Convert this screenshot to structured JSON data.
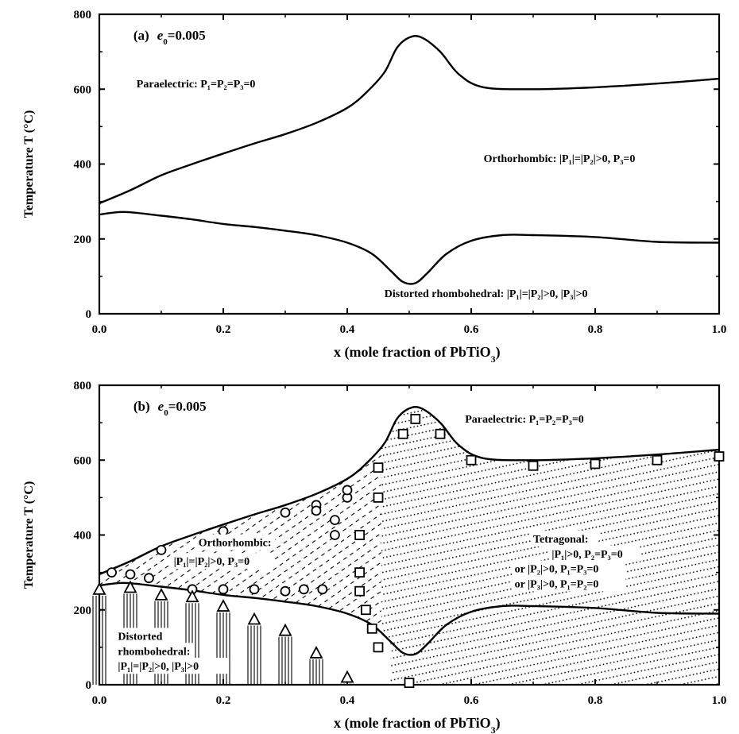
{
  "chart_data": [
    {
      "type": "line",
      "panel_label": "(a)",
      "parameter_label": "e",
      "parameter_subscript": "0",
      "parameter_value": "=0.005",
      "xlabel": "x (mole fraction of PbTiO",
      "xlabel_sub": "3",
      "xlabel_end": ")",
      "ylabel": "Temperature T (°C)",
      "xlim": [
        0.0,
        1.0
      ],
      "ylim": [
        0,
        800
      ],
      "xticks": [
        "0.0",
        "0.2",
        "0.4",
        "0.6",
        "0.8",
        "1.0"
      ],
      "yticks": [
        "0",
        "200",
        "400",
        "600",
        "800"
      ],
      "series": [
        {
          "x": [
            0.0,
            0.05,
            0.1,
            0.15,
            0.2,
            0.25,
            0.3,
            0.35,
            0.4,
            0.43,
            0.46,
            0.48,
            0.5,
            0.52,
            0.55,
            0.58,
            0.62,
            0.7,
            0.8,
            0.9,
            1.0
          ],
          "values": [
            295,
            330,
            370,
            400,
            428,
            455,
            480,
            510,
            550,
            590,
            645,
            710,
            738,
            738,
            700,
            640,
            605,
            600,
            605,
            615,
            628
          ]
        },
        {
          "x": [
            0.0,
            0.04,
            0.1,
            0.15,
            0.2,
            0.25,
            0.3,
            0.35,
            0.4,
            0.44,
            0.47,
            0.49,
            0.51,
            0.53,
            0.56,
            0.6,
            0.65,
            0.7,
            0.8,
            0.9,
            1.0
          ],
          "values": [
            265,
            272,
            262,
            252,
            240,
            232,
            222,
            210,
            190,
            160,
            115,
            85,
            82,
            110,
            160,
            195,
            210,
            210,
            205,
            192,
            190
          ]
        }
      ],
      "annotations": [
        {
          "text": "Paraelectric: P₁=P₂=P₃=0",
          "x": 0.06,
          "y": 605
        },
        {
          "text": "Orthorhombic: |P₁|=|P₂|>0, P₃=0",
          "x": 0.62,
          "y": 405
        },
        {
          "text": "Distorted rhombohedral: |P₁|=|P₂|>0, |P₃|>0",
          "x": 0.46,
          "y": 45
        }
      ]
    },
    {
      "type": "line",
      "panel_label": "(b)",
      "parameter_label": "e",
      "parameter_subscript": "0",
      "parameter_value": "=0.005",
      "xlabel": "x (mole fraction of PbTiO",
      "xlabel_sub": "3",
      "xlabel_end": ")",
      "ylabel": "Temperature T (°C)",
      "xlim": [
        0.0,
        1.0
      ],
      "ylim": [
        0,
        800
      ],
      "xticks": [
        "0.0",
        "0.2",
        "0.4",
        "0.6",
        "0.8",
        "1.0"
      ],
      "yticks": [
        "0",
        "200",
        "400",
        "600",
        "800"
      ],
      "series": [
        {
          "x": [
            0.0,
            0.05,
            0.1,
            0.15,
            0.2,
            0.25,
            0.3,
            0.35,
            0.4,
            0.43,
            0.46,
            0.48,
            0.5,
            0.52,
            0.55,
            0.58,
            0.62,
            0.7,
            0.8,
            0.9,
            1.0
          ],
          "values": [
            295,
            330,
            370,
            400,
            428,
            455,
            480,
            510,
            550,
            590,
            645,
            710,
            738,
            738,
            700,
            640,
            605,
            600,
            605,
            615,
            628
          ]
        },
        {
          "x": [
            0.0,
            0.04,
            0.1,
            0.15,
            0.2,
            0.25,
            0.3,
            0.35,
            0.4,
            0.44,
            0.47,
            0.49,
            0.51,
            0.53,
            0.56,
            0.6,
            0.65,
            0.7,
            0.8,
            0.9,
            1.0
          ],
          "values": [
            265,
            272,
            262,
            252,
            240,
            232,
            222,
            210,
            190,
            160,
            115,
            85,
            82,
            110,
            160,
            195,
            210,
            210,
            205,
            192,
            190
          ]
        }
      ],
      "markers": {
        "circle": [
          [
            0.02,
            300
          ],
          [
            0.05,
            295
          ],
          [
            0.08,
            285
          ],
          [
            0.1,
            360
          ],
          [
            0.15,
            255
          ],
          [
            0.2,
            255
          ],
          [
            0.2,
            410
          ],
          [
            0.25,
            255
          ],
          [
            0.3,
            250
          ],
          [
            0.3,
            460
          ],
          [
            0.33,
            255
          ],
          [
            0.35,
            480
          ],
          [
            0.35,
            465
          ],
          [
            0.36,
            255
          ],
          [
            0.38,
            440
          ],
          [
            0.38,
            400
          ],
          [
            0.4,
            500
          ],
          [
            0.4,
            520
          ]
        ],
        "square": [
          [
            0.42,
            400
          ],
          [
            0.42,
            300
          ],
          [
            0.42,
            250
          ],
          [
            0.43,
            200
          ],
          [
            0.44,
            150
          ],
          [
            0.45,
            100
          ],
          [
            0.45,
            500
          ],
          [
            0.45,
            580
          ],
          [
            0.49,
            670
          ],
          [
            0.51,
            710
          ],
          [
            0.55,
            670
          ],
          [
            0.6,
            600
          ],
          [
            0.7,
            585
          ],
          [
            0.8,
            590
          ],
          [
            0.9,
            600
          ],
          [
            1.0,
            610
          ],
          [
            0.5,
            5
          ]
        ],
        "triangle": [
          [
            0.0,
            255
          ],
          [
            0.05,
            260
          ],
          [
            0.1,
            240
          ],
          [
            0.15,
            235
          ],
          [
            0.2,
            210
          ],
          [
            0.25,
            175
          ],
          [
            0.3,
            145
          ],
          [
            0.35,
            85
          ],
          [
            0.4,
            20
          ]
        ]
      },
      "annotations": [
        {
          "text": "Paraelectric: P₁=P₂=P₃=0",
          "x": 0.59,
          "y": 700
        },
        {
          "text": "Orthorhombic:",
          "x": 0.16,
          "y": 370
        },
        {
          "text": "|P₁|=|P₂|>0, P₃=0",
          "x": 0.12,
          "y": 320
        },
        {
          "text": "Tetragonal:",
          "x": 0.7,
          "y": 380
        },
        {
          "text": "|P₁|>0, P₂=P₃=0",
          "x": 0.73,
          "y": 340
        },
        {
          "text": "or  |P₂|>0, P₁=P₃=0",
          "x": 0.67,
          "y": 300
        },
        {
          "text": "or  |P₃|>0, P₁=P₂=0",
          "x": 0.67,
          "y": 260
        },
        {
          "text": "Distorted",
          "x": 0.03,
          "y": 120
        },
        {
          "text": "rhombohedral:",
          "x": 0.03,
          "y": 80
        },
        {
          "text": "|P₁|=|P₂|>0, |P₃|>0",
          "x": 0.03,
          "y": 40
        }
      ]
    }
  ]
}
